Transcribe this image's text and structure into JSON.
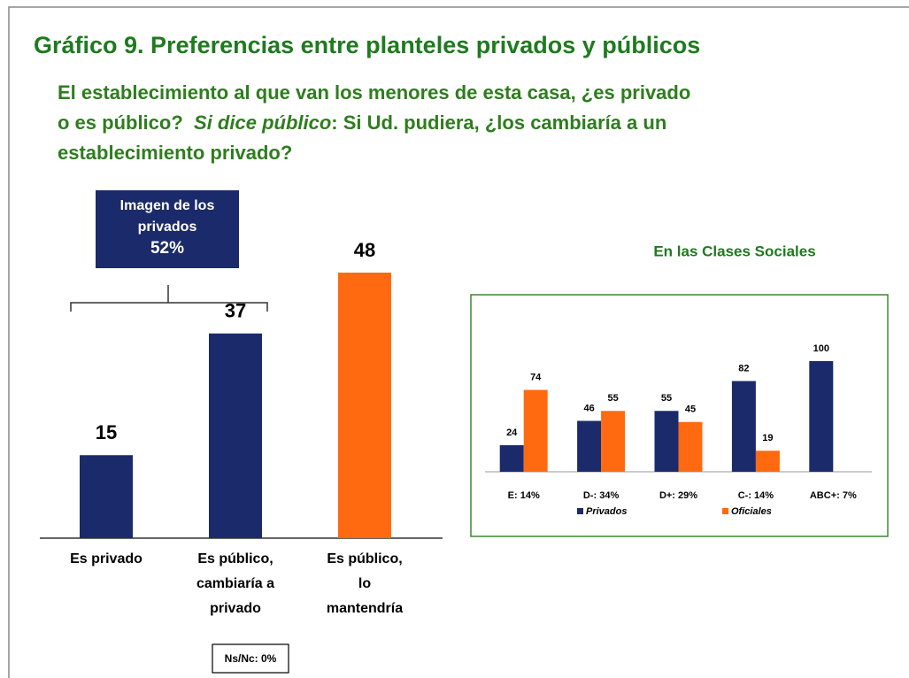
{
  "title": "Gráfico 9. Preferencias entre planteles privados y públicos",
  "subtitle": [
    "El establecimiento al que van los menores de esta casa, ¿es privado o es público?",
    "Si dice público",
    ": Si Ud. pudiera, ¿los cambiaría a un establecimiento privado?"
  ],
  "chart_data": [
    {
      "type": "bar",
      "categories": [
        "Es privado",
        "Es público, cambiaría a privado",
        "Es público, lo mantendría"
      ],
      "values": [
        15,
        37,
        48
      ],
      "colors": [
        "#1b2a6b",
        "#1b2a6b",
        "#ff6a10"
      ],
      "annotations": [
        "Imagen de los privados 52%",
        "Ns/Nc: 0%"
      ]
    },
    {
      "type": "bar",
      "title": "En las Clases Sociales",
      "categories": [
        "E: 14%",
        "D-: 34%",
        "D+: 29%",
        "C-: 14%",
        "ABC+: 7%"
      ],
      "series": [
        {
          "name": "Privados",
          "color": "#1b2a6b",
          "values": [
            24,
            46,
            55,
            82,
            100
          ]
        },
        {
          "name": "Oficiales",
          "color": "#ff6a10",
          "values": [
            74,
            55,
            45,
            19,
            null
          ]
        }
      ],
      "legend": "bottom"
    }
  ]
}
